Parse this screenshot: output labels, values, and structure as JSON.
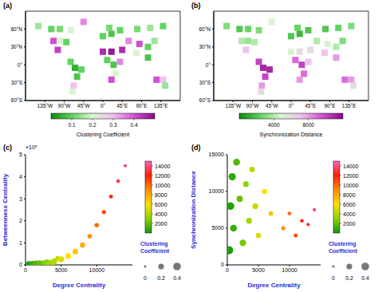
{
  "chart_data": [
    {
      "type": "map",
      "panel": "(a)",
      "xlim": [
        -180,
        180
      ],
      "xticks": [
        {
          "value": -135,
          "label": "135°W"
        },
        {
          "value": -90,
          "label": "90°W"
        },
        {
          "value": -45,
          "label": "45°W"
        },
        {
          "value": 0,
          "label": "0°"
        },
        {
          "value": 45,
          "label": "45°E"
        },
        {
          "value": 90,
          "label": "90°E"
        },
        {
          "value": 135,
          "label": "135°E"
        }
      ],
      "ylim": [
        -60,
        90
      ],
      "yticks": [
        {
          "value": -60,
          "label": "60°S"
        },
        {
          "value": -30,
          "label": "30°S"
        },
        {
          "value": 0,
          "label": "0°"
        },
        {
          "value": 30,
          "label": "30°N"
        },
        {
          "value": 60,
          "label": "60°N"
        }
      ],
      "points": {
        "lon": [
          -150,
          -120,
          -100,
          -75,
          -115,
          -100,
          -85,
          -105,
          -45,
          -65,
          -50,
          -60,
          -68,
          -70,
          -75,
          0,
          20,
          40,
          15,
          0,
          20,
          10,
          25,
          30,
          20,
          40,
          45,
          60,
          85,
          80,
          110,
          140,
          105,
          120,
          78,
          105,
          125,
          140,
          145
        ],
        "lat": [
          65,
          60,
          60,
          58,
          40,
          40,
          38,
          25,
          72,
          -5,
          -8,
          -20,
          -35,
          -45,
          5,
          48,
          52,
          58,
          62,
          22,
          22,
          8,
          0,
          -15,
          -25,
          5,
          25,
          40,
          35,
          60,
          62,
          65,
          30,
          40,
          20,
          12,
          -25,
          -25,
          -35
        ],
        "value": [
          0.15,
          0.1,
          0.12,
          0.2,
          0.4,
          0.2,
          0.1,
          0.42,
          0.35,
          0.05,
          0.1,
          0.08,
          0.3,
          0.2,
          0.1,
          0.1,
          0.08,
          0.1,
          0.12,
          0.45,
          0.48,
          0.1,
          0.08,
          0.2,
          0.4,
          0.35,
          0.45,
          0.35,
          0.4,
          0.12,
          0.15,
          0.1,
          0.1,
          0.15,
          0.2,
          0.08,
          0.4,
          0.3,
          0.15
        ]
      },
      "colorbar": {
        "label": "Clustering Coefficient",
        "range": [
          0,
          0.5
        ],
        "ticks": [
          0.1,
          0.2,
          0.3,
          0.4
        ],
        "colors": [
          "#0a8a0a",
          "#5fd35f",
          "#d9f5d0",
          "#f0c0f0",
          "#d050d0",
          "#8a0a8a"
        ]
      }
    },
    {
      "type": "map",
      "panel": "(b)",
      "xlim": [
        -180,
        180
      ],
      "xticks": [
        {
          "value": -135,
          "label": "135°W"
        },
        {
          "value": -90,
          "label": "90°W"
        },
        {
          "value": -45,
          "label": "45°W"
        },
        {
          "value": 0,
          "label": "0°"
        },
        {
          "value": 45,
          "label": "45°E"
        },
        {
          "value": 90,
          "label": "90°E"
        },
        {
          "value": 135,
          "label": "135°E"
        }
      ],
      "ylim": [
        -60,
        90
      ],
      "yticks": [
        {
          "value": -60,
          "label": "60°S"
        },
        {
          "value": -30,
          "label": "30°S"
        },
        {
          "value": 0,
          "label": "0°"
        },
        {
          "value": 30,
          "label": "30°N"
        },
        {
          "value": 60,
          "label": "60°N"
        }
      ],
      "points": {
        "lon": [
          -150,
          -120,
          -100,
          -75,
          -115,
          -100,
          -85,
          -105,
          -45,
          -65,
          -50,
          -60,
          -68,
          -70,
          -75,
          0,
          20,
          40,
          15,
          0,
          20,
          10,
          25,
          30,
          20,
          40,
          45,
          60,
          85,
          80,
          110,
          140,
          105,
          120,
          78,
          105,
          125,
          140,
          145
        ],
        "lat": [
          65,
          60,
          60,
          58,
          40,
          40,
          38,
          25,
          72,
          -5,
          -8,
          -20,
          -35,
          -45,
          5,
          48,
          52,
          58,
          62,
          22,
          22,
          8,
          0,
          -15,
          -25,
          5,
          25,
          40,
          35,
          60,
          62,
          65,
          30,
          40,
          20,
          12,
          -25,
          -25,
          -35
        ],
        "value": [
          3000,
          2000,
          2500,
          3000,
          4000,
          3500,
          4000,
          7000,
          5000,
          11000,
          11000,
          10000,
          8000,
          6000,
          10000,
          2000,
          1500,
          2000,
          2500,
          5000,
          6000,
          9000,
          10000,
          9000,
          8000,
          7000,
          6000,
          4000,
          5000,
          2000,
          2500,
          3000,
          4000,
          3000,
          7000,
          8000,
          9000,
          8000,
          6000
        ]
      },
      "colorbar": {
        "label": "Synchronization Distance",
        "range": [
          0,
          12000
        ],
        "ticks": [
          4000,
          8000
        ],
        "colors": [
          "#0a8a0a",
          "#5fd35f",
          "#d9f5d0",
          "#f0c0f0",
          "#d050d0",
          "#8a0a8a"
        ]
      }
    },
    {
      "type": "scatter3d",
      "panel": "(c)",
      "xlabel": "Degree Centrality",
      "ylabel": "Betweenness Centrality",
      "zlabel": "Clustering Coefficient",
      "annotations": [
        "×10⁵"
      ],
      "xlim": [
        0,
        15000
      ],
      "xticks": [
        0,
        5000,
        10000
      ],
      "ylim": [
        0,
        5
      ],
      "yticks": [
        0,
        1,
        2,
        3,
        4,
        5
      ],
      "zlim": [
        0,
        0.5
      ],
      "zticks": [
        0,
        0.2,
        0.4
      ],
      "x": [
        500,
        1000,
        1500,
        2000,
        2500,
        3000,
        3500,
        4000,
        4500,
        5000,
        6000,
        7000,
        8000,
        9000,
        10000,
        11000,
        12000,
        13000,
        14000
      ],
      "y": [
        0,
        0.02,
        0.01,
        0.05,
        0.08,
        0.1,
        0.05,
        0.15,
        0.3,
        0.25,
        0.4,
        0.6,
        0.9,
        1.3,
        1.8,
        2.4,
        3.1,
        3.8,
        4.5
      ],
      "z": [
        0.4,
        0.35,
        0.45,
        0.3,
        0.15,
        0.28,
        0.4,
        0.25,
        0.12,
        0.22,
        0.2,
        0.18,
        0.15,
        0.12,
        0.1,
        0.08,
        0.06,
        0.05,
        0.04
      ],
      "colorbar": {
        "range": [
          0,
          15000
        ],
        "ticks": [
          2000,
          4000,
          6000,
          8000,
          10000,
          12000,
          14000
        ],
        "colors": [
          "#0a9a0a",
          "#8fd400",
          "#ffe000",
          "#ff9000",
          "#ff2000",
          "#ff60c0"
        ]
      }
    },
    {
      "type": "scatter3d",
      "panel": "(d)",
      "xlabel": "Degree Centrality",
      "ylabel": "Synchronization Distance",
      "zlabel": "Clustering Coefficient",
      "xlim": [
        0,
        15000
      ],
      "xticks": [
        0,
        5000,
        10000
      ],
      "ylim": [
        0,
        15000
      ],
      "yticks": [
        0,
        5000,
        10000,
        15000
      ],
      "zlim": [
        0,
        0.5
      ],
      "zticks": [
        0,
        0.2,
        0.4
      ],
      "x": [
        300,
        500,
        800,
        1000,
        1500,
        2000,
        2500,
        3000,
        3500,
        4000,
        4500,
        5000,
        6000,
        7000,
        9000,
        10000,
        11000,
        12000,
        13000,
        14000
      ],
      "y": [
        2000,
        8000,
        12000,
        5000,
        14000,
        9000,
        3000,
        11000,
        6000,
        13000,
        8000,
        4000,
        10000,
        7000,
        5000,
        7000,
        4000,
        6000,
        5500,
        7500
      ],
      "z": [
        0.45,
        0.4,
        0.35,
        0.3,
        0.3,
        0.25,
        0.28,
        0.2,
        0.22,
        0.18,
        0.2,
        0.15,
        0.15,
        0.12,
        0.08,
        0.06,
        0.07,
        0.05,
        0.04,
        0.04
      ],
      "colorbar": {
        "range": [
          0,
          15000
        ],
        "ticks": [
          2000,
          4000,
          6000,
          8000,
          10000,
          12000,
          14000
        ],
        "colors": [
          "#0a9a0a",
          "#8fd400",
          "#ffe000",
          "#ff9000",
          "#ff2000",
          "#ff60c0"
        ]
      }
    }
  ]
}
